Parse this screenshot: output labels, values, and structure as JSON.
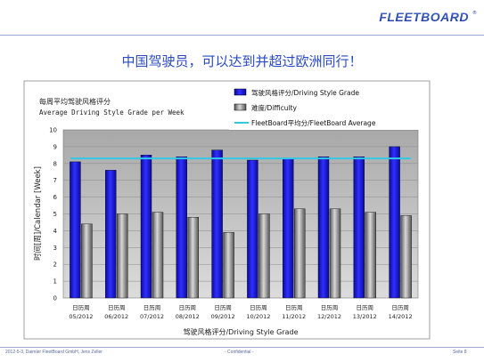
{
  "brand": {
    "logo_text": "FLEETBOARD"
  },
  "slide": {
    "title": "中国驾驶员，可以达到并超过欧洲同行！"
  },
  "footer": {
    "left": "2012-5-3, Daimler FleetBoard GmbH, Jens Zeller",
    "center": "- Confidential -",
    "right": "Seite 8"
  },
  "colors": {
    "grade": "#1010c8",
    "difficulty": "#777777",
    "average": "#33c8e6",
    "plot_bg": "#c0c0c0",
    "title": "#2a4ac4"
  },
  "chart_data": {
    "type": "bar",
    "title": "每周平均驾驶风格评分",
    "subtitle": "Average Driving Style Grade per Week",
    "xlabel": "驾驶风格评分/Driving Style Grade",
    "ylabel": "时间[周]/Calendar [Week]",
    "ylim": [
      0,
      10
    ],
    "yticks": [
      0,
      1,
      2,
      3,
      4,
      5,
      6,
      7,
      8,
      9,
      10
    ],
    "grid": true,
    "legend": "top-right",
    "category_prefix": "日历周",
    "categories": [
      "05/2012",
      "06/2012",
      "07/2012",
      "08/2012",
      "09/2012",
      "10/2012",
      "11/2012",
      "12/2012",
      "13/2012",
      "14/2012"
    ],
    "series": [
      {
        "name": "驾驶风格评分/Driving Style Grade",
        "kind": "bar",
        "values": [
          8.1,
          7.6,
          8.5,
          8.4,
          8.8,
          8.2,
          8.3,
          8.4,
          8.4,
          9.0
        ]
      },
      {
        "name": "难度/Difficulty",
        "kind": "bar",
        "values": [
          4.4,
          5.0,
          5.1,
          4.8,
          3.9,
          5.0,
          5.3,
          5.3,
          5.1,
          4.9
        ]
      },
      {
        "name": "FleetBoard平均分/FleetBoard Average",
        "kind": "line",
        "values": [
          8.3,
          8.3,
          8.3,
          8.3,
          8.3,
          8.3,
          8.3,
          8.3,
          8.3,
          8.3
        ]
      }
    ]
  }
}
